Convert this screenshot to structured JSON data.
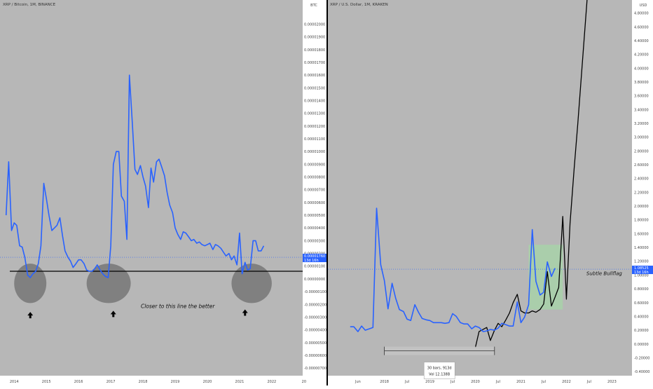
{
  "left_panel": {
    "symbol_label": "XRP / Bitcoin, 1M, BINANCE",
    "currency_label": "BTC",
    "price_badge": {
      "value": "0.00001760",
      "countdown": "13d 16h"
    },
    "annotation": "Closer to this line the better",
    "arrow_glyph": "🡅",
    "colors": {
      "background": "#b7b7b7",
      "line": "#2962ff",
      "support": "#000000",
      "highlight": "#777777",
      "badge": "#2962ff"
    }
  },
  "right_panel": {
    "symbol_label": "XRP / U.S. Dollar, 1M, KRAKEN",
    "currency_label": "USD",
    "price_badge": {
      "value": "1.08525",
      "countdown": "13d 16h"
    },
    "annotation": "Subtle Bullflag",
    "measure_label_1": "30 bars, 913d",
    "measure_label_2": "Vol 12.138B",
    "colors": {
      "background": "#b7b7b7",
      "line": "#2962ff",
      "projection": "#000000",
      "box": "#a5d6a7"
    }
  },
  "chart_data": [
    {
      "type": "line",
      "title": "XRP / Bitcoin, 1M, BINANCE",
      "unit": "BTC",
      "x_ticks": [
        "2014",
        "2015",
        "2016",
        "2017",
        "2018",
        "2019",
        "2020",
        "2021",
        "2022",
        "20"
      ],
      "y_ticks": [
        "0.00002000",
        "0.00001900",
        "0.00001800",
        "0.00001700",
        "0.00001600",
        "0.00001500",
        "0.00001400",
        "0.00001300",
        "0.00001200",
        "0.00001100",
        "0.00001000",
        "0.00000900",
        "0.00000800",
        "0.00000700",
        "0.00000600",
        "0.00000500",
        "0.00000400",
        "0.00000300",
        "0.00000200",
        "0.00000100",
        "0.00000000",
        "-0.00000100",
        "-0.00000200",
        "-0.00000300",
        "-0.00000400",
        "-0.00000500",
        "-0.00000600",
        "-0.00000700"
      ],
      "y_values": [
        2e-05,
        1.9e-05,
        1.8e-05,
        1.7e-05,
        1.6e-05,
        1.5e-05,
        1.4e-05,
        1.3e-05,
        1.2e-05,
        1.1e-05,
        1e-05,
        9e-06,
        8e-06,
        7e-06,
        6e-06,
        5e-06,
        4e-06,
        3e-06,
        2e-06,
        1e-06,
        0,
        -1e-06,
        -2e-06,
        -3e-06,
        -4e-06,
        -5e-06,
        -6e-06,
        -7e-06
      ],
      "ylim": [
        -7.6e-06,
        2.19e-05
      ],
      "xlim": [
        2013.56,
        2022.96
      ],
      "support_level": 6e-07,
      "series": [
        {
          "x": [
            2013.75,
            2013.83,
            2013.92,
            2014.0,
            2014.08,
            2014.17,
            2014.25,
            2014.33,
            2014.42,
            2014.5,
            2014.58,
            2014.67,
            2014.75,
            2014.83,
            2014.92,
            2015.0,
            2015.08,
            2015.17,
            2015.25,
            2015.33,
            2015.42,
            2015.5,
            2015.58,
            2015.67,
            2015.75,
            2015.83,
            2015.92,
            2016.0,
            2016.08,
            2016.17,
            2016.25,
            2016.33,
            2016.42,
            2016.5,
            2016.58,
            2016.67,
            2016.75,
            2016.83,
            2016.92,
            2017.0,
            2017.08,
            2017.17,
            2017.25,
            2017.33,
            2017.42,
            2017.5,
            2017.58,
            2017.67,
            2017.75,
            2017.83,
            2017.92,
            2018.0,
            2018.08,
            2018.17,
            2018.25,
            2018.33,
            2018.42,
            2018.5,
            2018.58,
            2018.67,
            2018.75,
            2018.83,
            2018.92,
            2019.0,
            2019.08,
            2019.17,
            2019.25,
            2019.33,
            2019.42,
            2019.5,
            2019.58,
            2019.67,
            2019.75,
            2019.83,
            2019.92,
            2020.0,
            2020.08,
            2020.17,
            2020.25,
            2020.33,
            2020.42,
            2020.5,
            2020.58,
            2020.67,
            2020.75,
            2020.83,
            2020.92,
            2021.0,
            2021.08,
            2021.17,
            2021.25,
            2021.33,
            2021.42,
            2021.5,
            2021.58,
            2021.67,
            2021.75
          ],
          "values": [
            5e-06,
            9.2e-06,
            3.8e-06,
            4.4e-06,
            4.2e-06,
            2.6e-06,
            2.5e-06,
            1.7e-06,
            3e-07,
            1e-07,
            4e-07,
            6e-07,
            1.2e-06,
            2.6e-06,
            7.5e-06,
            6.3e-06,
            5e-06,
            3.8e-06,
            4e-06,
            4.2e-06,
            4.8e-06,
            3.4e-06,
            2.2e-06,
            1.7e-06,
            1.4e-06,
            9e-07,
            1.2e-06,
            1.5e-06,
            1.5e-06,
            1.2e-06,
            7e-07,
            6e-07,
            6e-07,
            8e-07,
            1.1e-06,
            7e-07,
            4e-07,
            2e-07,
            1e-07,
            2.6e-06,
            9e-06,
            1e-05,
            1e-05,
            6.5e-06,
            6.1e-06,
            3.1e-06,
            1.6e-05,
            1.22e-05,
            8.6e-06,
            8.2e-06,
            8.9e-06,
            8e-06,
            7.3e-06,
            5.6e-06,
            8.7e-06,
            7.6e-06,
            9.2e-06,
            9.4e-06,
            8.8e-06,
            8.1e-06,
            6.8e-06,
            5.8e-06,
            5.2e-06,
            4e-06,
            3.5e-06,
            3.1e-06,
            3.7e-06,
            3.6e-06,
            3.3e-06,
            3e-06,
            3.1e-06,
            2.8e-06,
            2.9e-06,
            2.7e-06,
            2.6e-06,
            2.7e-06,
            2.8e-06,
            2.3e-06,
            2.7e-06,
            2.6e-06,
            2.4e-06,
            2.1e-06,
            1.8e-06,
            2e-06,
            1.5e-06,
            1.8e-06,
            1.1e-06,
            3.6e-06,
            4e-07,
            1.3e-06,
            7e-07,
            8e-07,
            3e-06,
            3e-06,
            2.2e-06,
            2.2e-06,
            2.6e-06
          ]
        }
      ],
      "highlight_zones": [
        {
          "x_from": 2014.0,
          "x_to": 2015.0,
          "y_from": -1.9e-06,
          "y_to": 1.2e-06
        },
        {
          "x_from": 2016.25,
          "x_to": 2017.62,
          "y_from": -1.9e-06,
          "y_to": 1.2e-06
        },
        {
          "x_from": 2020.75,
          "x_to": 2022.0,
          "y_from": -1.9e-06,
          "y_to": 1.2e-06
        }
      ],
      "arrows": [
        {
          "x": 2014.5,
          "y": -2.6e-06
        },
        {
          "x": 2017.08,
          "y": -2.5e-06
        },
        {
          "x": 2021.17,
          "y": -2.4e-06
        }
      ],
      "annotation_position": {
        "x": 2019.08,
        "y": -2.3e-06
      },
      "grid": false,
      "legend": "top-left"
    },
    {
      "type": "line",
      "title": "XRP / U.S. Dollar, 1M, KRAKEN",
      "unit": "USD",
      "x_ticks": [
        "Jun",
        "2018",
        "Jul",
        "2019",
        "Jul",
        "2020",
        "Jul",
        "2021",
        "Jul",
        "2022",
        "Jul",
        "2023"
      ],
      "x_tick_values": [
        2017.42,
        2018.0,
        2018.5,
        2019.0,
        2019.5,
        2020.0,
        2020.5,
        2021.0,
        2021.5,
        2022.0,
        2022.5,
        2023.0
      ],
      "y_ticks": [
        "4.80000",
        "4.60000",
        "4.40000",
        "4.20000",
        "4.00000",
        "3.80000",
        "3.60000",
        "3.40000",
        "3.20000",
        "3.00000",
        "2.80000",
        "2.60000",
        "2.40000",
        "2.20000",
        "2.00000",
        "1.80000",
        "1.60000",
        "1.40000",
        "1.20000",
        "1.00000",
        "0.80000",
        "0.60000",
        "0.40000",
        "0.20000",
        "0.00000",
        "-0.20000",
        "-0.40000"
      ],
      "y_values": [
        4.8,
        4.6,
        4.4,
        4.2,
        4.0,
        3.8,
        3.6,
        3.4,
        3.2,
        3.0,
        2.8,
        2.6,
        2.4,
        2.2,
        2.0,
        1.8,
        1.6,
        1.4,
        1.2,
        1.0,
        0.8,
        0.6,
        0.4,
        0.2,
        0.0,
        -0.2,
        -0.4
      ],
      "ylim": [
        -0.46,
        4.99
      ],
      "xlim": [
        2016.76,
        2023.44
      ],
      "series": [
        {
          "name": "XRP / U.S. Dollar",
          "x": [
            2017.25,
            2017.33,
            2017.42,
            2017.5,
            2017.58,
            2017.67,
            2017.75,
            2017.83,
            2017.92,
            2018.0,
            2018.08,
            2018.17,
            2018.25,
            2018.33,
            2018.42,
            2018.5,
            2018.58,
            2018.67,
            2018.75,
            2018.83,
            2018.92,
            2019.0,
            2019.08,
            2019.17,
            2019.25,
            2019.33,
            2019.42,
            2019.5,
            2019.58,
            2019.67,
            2019.75,
            2019.83,
            2019.92,
            2020.0,
            2020.08,
            2020.17,
            2020.25,
            2020.33,
            2020.42,
            2020.5,
            2020.58,
            2020.67,
            2020.75,
            2020.83,
            2020.92,
            2021.0,
            2021.08,
            2021.17,
            2021.25,
            2021.33,
            2021.42,
            2021.5,
            2021.58,
            2021.67,
            2021.75
          ],
          "values": [
            0.25,
            0.25,
            0.18,
            0.26,
            0.2,
            0.22,
            0.24,
            1.97,
            1.15,
            0.92,
            0.51,
            0.88,
            0.66,
            0.5,
            0.47,
            0.36,
            0.34,
            0.57,
            0.46,
            0.37,
            0.35,
            0.34,
            0.31,
            0.31,
            0.31,
            0.3,
            0.31,
            0.44,
            0.4,
            0.31,
            0.29,
            0.29,
            0.22,
            0.26,
            0.24,
            0.18,
            0.19,
            0.21,
            0.2,
            0.23,
            0.3,
            0.28,
            0.26,
            0.26,
            0.61,
            0.31,
            0.39,
            0.57,
            1.66,
            0.91,
            0.71,
            0.75,
            1.19,
            0.98,
            1.1
          ]
        },
        {
          "name": "projection",
          "x": [
            2020.0,
            2020.08,
            2020.25,
            2020.33,
            2020.42,
            2020.5,
            2020.58,
            2020.67,
            2020.75,
            2020.83,
            2020.92,
            2021.0,
            2021.08,
            2021.17,
            2021.25,
            2021.33,
            2021.42,
            2021.5,
            2021.58,
            2021.67,
            2021.75,
            2021.83,
            2021.92,
            2022.0,
            2022.08,
            2022.17,
            2022.25,
            2022.5
          ],
          "values": [
            -0.05,
            0.18,
            0.24,
            0.05,
            0.2,
            0.3,
            0.25,
            0.35,
            0.45,
            0.6,
            0.72,
            0.48,
            0.45,
            0.45,
            0.48,
            0.46,
            0.5,
            0.58,
            1.05,
            0.55,
            0.68,
            0.82,
            1.85,
            0.65,
            1.75,
            2.55,
            3.2,
            5.4
          ]
        }
      ],
      "highlight_box": {
        "x_from": 2021.17,
        "x_to": 2021.92,
        "y_from": 0.5,
        "y_to": 1.44
      },
      "measure": {
        "x_from": 2018.0,
        "x_to": 2020.42,
        "y": -0.1
      },
      "annotation_position": {
        "x": 2022.83,
        "y": 1.0
      },
      "current_price": 1.08525,
      "grid": false,
      "legend": "top-left"
    }
  ]
}
